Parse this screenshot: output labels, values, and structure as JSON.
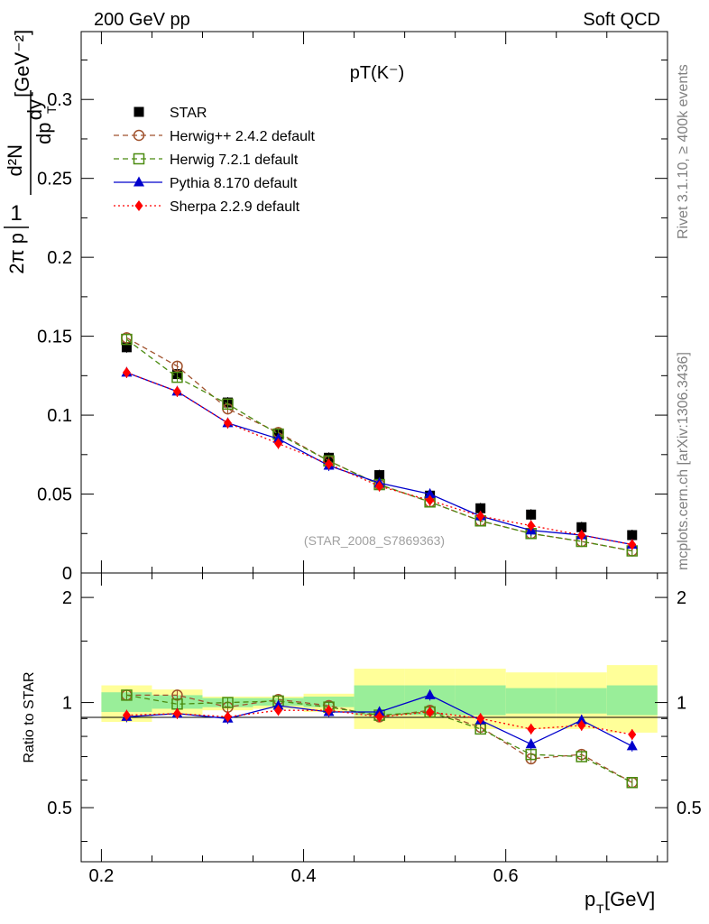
{
  "header": {
    "energy_label": "200 GeV pp",
    "category_label": "Soft QCD"
  },
  "side_text": {
    "rivet": "Rivet 3.1.10, ≥ 400k events",
    "mcplots": "mcplots.cern.ch [arXiv:1306.3436]"
  },
  "chart_data": [
    {
      "type": "scatter",
      "title": "pT(K⁻)",
      "watermark": "(STAR_2008_S7869363)",
      "ylabel_parts": {
        "one": "1",
        "two_pi": "2π p",
        "d2n": "d²N",
        "dpt_dy": "dp",
        "t": "T",
        "dy": "dy",
        "unit": "[GeV⁻²]"
      },
      "xlim": [
        0.18,
        0.76
      ],
      "ylim": [
        0,
        0.343
      ],
      "yticks": [
        "0",
        "0.05",
        "0.1",
        "0.15",
        "0.2",
        "0.25",
        "0.3"
      ],
      "x": [
        0.225,
        0.275,
        0.325,
        0.375,
        0.425,
        0.475,
        0.525,
        0.575,
        0.625,
        0.675,
        0.725
      ],
      "series": [
        {
          "name": "STAR",
          "color": "#000000",
          "marker": "square-filled",
          "line": "none",
          "values": [
            0.143,
            0.126,
            0.108,
            0.088,
            0.073,
            0.062,
            0.049,
            0.041,
            0.037,
            0.029,
            0.024
          ]
        },
        {
          "name": "Herwig++ 2.4.2 default",
          "color": "#a0522d",
          "marker": "circle-open",
          "line": "dashed",
          "values": [
            0.149,
            0.131,
            0.104,
            0.089,
            0.071,
            0.056,
            0.045,
            0.033,
            0.025,
            0.02,
            0.014
          ]
        },
        {
          "name": "Herwig 7.2.1 default",
          "color": "#4b8b10",
          "marker": "square-open",
          "line": "dashed",
          "values": [
            0.148,
            0.124,
            0.107,
            0.088,
            0.071,
            0.056,
            0.045,
            0.033,
            0.025,
            0.02,
            0.014
          ]
        },
        {
          "name": "Pythia 8.170 default",
          "color": "#0000cc",
          "marker": "triangle-filled",
          "line": "solid",
          "values": [
            0.127,
            0.115,
            0.095,
            0.085,
            0.068,
            0.057,
            0.05,
            0.036,
            0.027,
            0.024,
            0.018
          ]
        },
        {
          "name": "Sherpa 2.2.9 default",
          "color": "#ff0000",
          "marker": "diamond-filled",
          "line": "dotted",
          "values": [
            0.127,
            0.115,
            0.095,
            0.082,
            0.069,
            0.055,
            0.046,
            0.036,
            0.03,
            0.024,
            0.018
          ]
        }
      ]
    },
    {
      "type": "scatter",
      "ylabel": "Ratio to STAR",
      "xlabel": "p",
      "xlabel_sub": "T",
      "xlabel_unit": " [GeV]",
      "xlim": [
        0.18,
        0.76
      ],
      "ylim": [
        0.35,
        2.35
      ],
      "xticks": [
        "0.2",
        "0.4",
        "0.6"
      ],
      "yticks": [
        "0.5",
        "1",
        "2"
      ],
      "x": [
        0.225,
        0.275,
        0.325,
        0.375,
        0.425,
        0.475,
        0.525,
        0.575,
        0.625,
        0.675,
        0.725
      ],
      "bin_edges": [
        0.2,
        0.25,
        0.3,
        0.35,
        0.4,
        0.45,
        0.5,
        0.55,
        0.6,
        0.65,
        0.7,
        0.75
      ],
      "band_inner": [
        [
          0.94,
          1.07
        ],
        [
          0.96,
          1.05
        ],
        [
          0.97,
          1.03
        ],
        [
          0.98,
          1.03
        ],
        [
          0.97,
          1.04
        ],
        [
          0.92,
          1.12
        ],
        [
          0.92,
          1.12
        ],
        [
          0.92,
          1.12
        ],
        [
          0.93,
          1.1
        ],
        [
          0.93,
          1.1
        ],
        [
          0.92,
          1.12
        ]
      ],
      "band_outer": [
        [
          0.88,
          1.12
        ],
        [
          0.92,
          1.09
        ],
        [
          0.95,
          1.04
        ],
        [
          0.96,
          1.04
        ],
        [
          0.94,
          1.06
        ],
        [
          0.84,
          1.25
        ],
        [
          0.84,
          1.25
        ],
        [
          0.84,
          1.25
        ],
        [
          0.84,
          1.22
        ],
        [
          0.84,
          1.22
        ],
        [
          0.82,
          1.28
        ]
      ],
      "series": [
        {
          "name": "Herwig++ 2.4.2 default",
          "color": "#a0522d",
          "marker": "circle-open",
          "line": "dashed",
          "values": [
            1.05,
            1.05,
            0.97,
            1.02,
            0.98,
            0.91,
            0.95,
            0.85,
            0.69,
            0.71,
            0.59
          ]
        },
        {
          "name": "Herwig 7.2.1 default",
          "color": "#4b8b10",
          "marker": "square-open",
          "line": "dashed",
          "values": [
            1.05,
            0.99,
            1.0,
            1.01,
            0.97,
            0.92,
            0.94,
            0.84,
            0.71,
            0.7,
            0.59
          ]
        },
        {
          "name": "Pythia 8.170 default",
          "color": "#0000cc",
          "marker": "triangle-filled",
          "line": "solid",
          "values": [
            0.91,
            0.93,
            0.9,
            0.98,
            0.94,
            0.94,
            1.05,
            0.89,
            0.76,
            0.89,
            0.75
          ]
        },
        {
          "name": "Sherpa 2.2.9 default",
          "color": "#ff0000",
          "marker": "diamond-filled",
          "line": "dotted",
          "values": [
            0.92,
            0.93,
            0.91,
            0.95,
            0.95,
            0.91,
            0.94,
            0.9,
            0.84,
            0.86,
            0.81
          ]
        }
      ]
    }
  ]
}
